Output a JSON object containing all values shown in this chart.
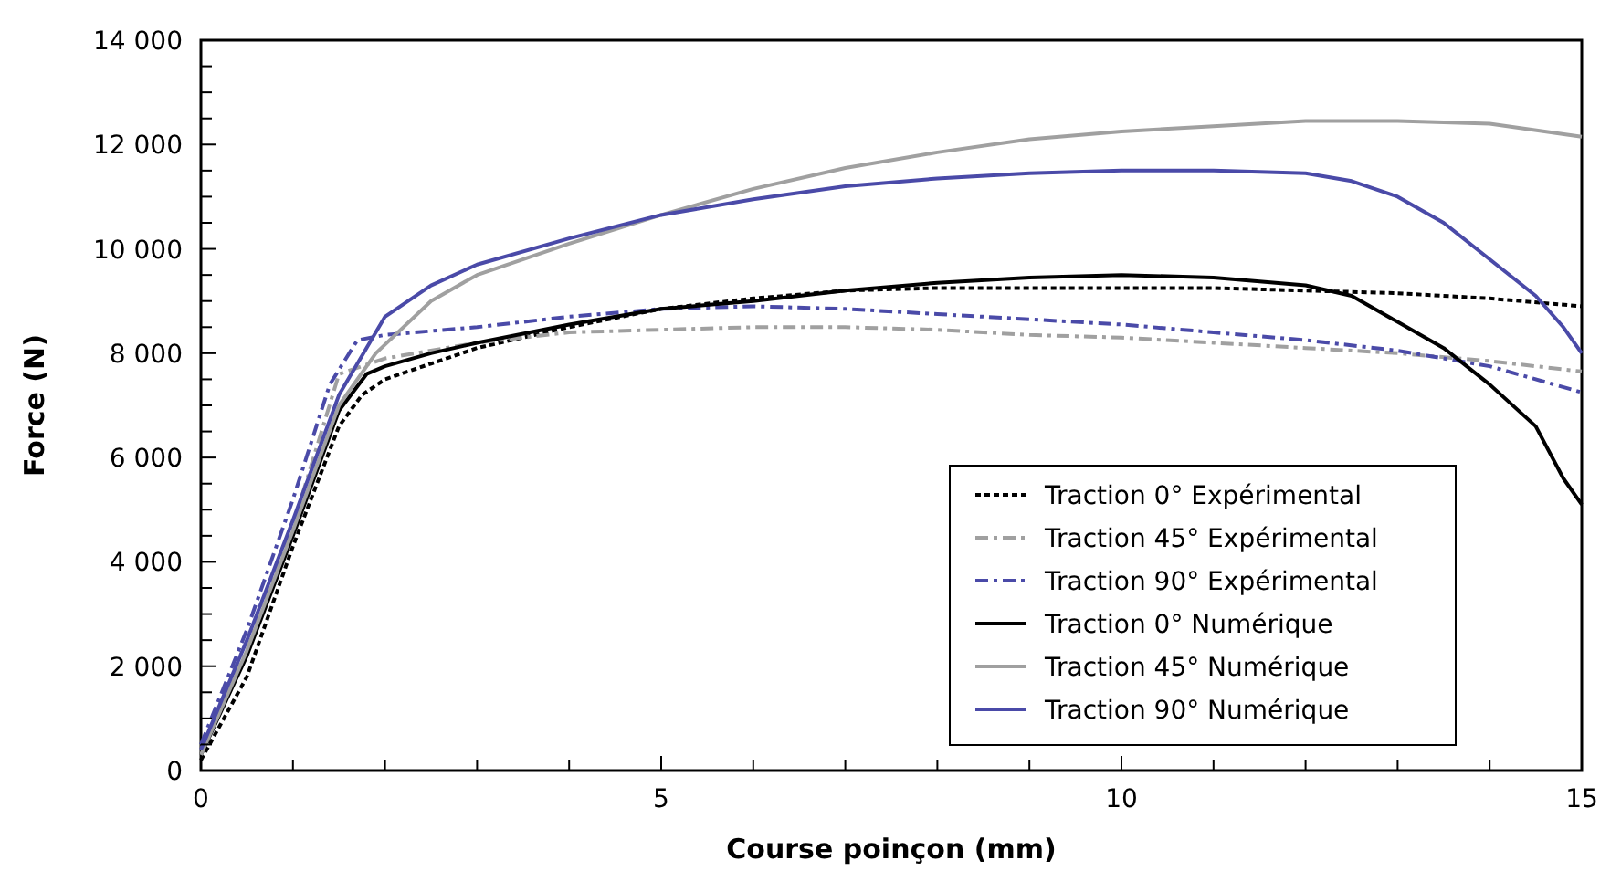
{
  "chart_data": {
    "type": "line",
    "xlabel": "Course poinçon (mm)",
    "ylabel": "Force (N)",
    "xlim": [
      0,
      15
    ],
    "ylim": [
      0,
      14000
    ],
    "xticks": [
      0,
      {
        "value": 1,
        "label": null
      },
      {
        "value": 2,
        "label": null
      },
      {
        "value": 3,
        "label": null
      },
      {
        "value": 4,
        "label": null
      },
      5,
      {
        "value": 6,
        "label": null
      },
      {
        "value": 7,
        "label": null
      },
      {
        "value": 8,
        "label": null
      },
      {
        "value": 9,
        "label": null
      },
      10,
      {
        "value": 11,
        "label": null
      },
      {
        "value": 12,
        "label": null
      },
      {
        "value": 13,
        "label": null
      },
      {
        "value": 14,
        "label": null
      },
      15
    ],
    "yticks": [
      0,
      {
        "value": 500,
        "label": null
      },
      {
        "value": 1000,
        "label": null
      },
      {
        "value": 1500,
        "label": null
      },
      {
        "value": 2000,
        "label": "2 000"
      },
      {
        "value": 2500,
        "label": null
      },
      {
        "value": 3000,
        "label": null
      },
      {
        "value": 3500,
        "label": null
      },
      {
        "value": 4000,
        "label": "4 000"
      },
      {
        "value": 4500,
        "label": null
      },
      {
        "value": 5000,
        "label": null
      },
      {
        "value": 5500,
        "label": null
      },
      {
        "value": 6000,
        "label": "6 000"
      },
      {
        "value": 6500,
        "label": null
      },
      {
        "value": 7000,
        "label": null
      },
      {
        "value": 7500,
        "label": null
      },
      {
        "value": 8000,
        "label": "8 000"
      },
      {
        "value": 8500,
        "label": null
      },
      {
        "value": 9000,
        "label": null
      },
      {
        "value": 9500,
        "label": null
      },
      {
        "value": 10000,
        "label": "10 000"
      },
      {
        "value": 10500,
        "label": null
      },
      {
        "value": 11000,
        "label": null
      },
      {
        "value": 11500,
        "label": null
      },
      {
        "value": 12000,
        "label": "12 000"
      },
      {
        "value": 12500,
        "label": null
      },
      {
        "value": 13000,
        "label": null
      },
      {
        "value": 13500,
        "label": null
      },
      {
        "value": 14000,
        "label": "14 000"
      }
    ],
    "grid": false,
    "legend": "bottom right",
    "marker": "none",
    "series": [
      {
        "name": "Traction 0° Expérimental",
        "color": "#000000",
        "line_style": "dotted",
        "x": [
          0,
          0.5,
          1,
          1.5,
          1.75,
          2,
          2.5,
          3,
          4,
          5,
          6,
          7,
          8,
          9,
          10,
          11,
          12,
          13,
          14,
          15
        ],
        "values": [
          200,
          1800,
          4300,
          6600,
          7200,
          7500,
          7800,
          8100,
          8500,
          8850,
          9050,
          9200,
          9250,
          9250,
          9250,
          9250,
          9200,
          9150,
          9050,
          8900
        ]
      },
      {
        "name": "Traction 45° Expérimental",
        "color": "#a0a0a0",
        "line_style": "dashed",
        "x": [
          0,
          0.5,
          1,
          1.5,
          2,
          3,
          4,
          5,
          6,
          7,
          8,
          9,
          10,
          11,
          12,
          13,
          14,
          15
        ],
        "values": [
          400,
          2300,
          4700,
          7600,
          7900,
          8200,
          8400,
          8450,
          8500,
          8500,
          8450,
          8350,
          8300,
          8200,
          8100,
          8000,
          7850,
          7650
        ]
      },
      {
        "name": "Traction 90° Expérimental",
        "color": "#4a4aa8",
        "line_style": "dashed",
        "x": [
          0,
          0.5,
          1,
          1.4,
          1.7,
          2,
          3,
          4,
          5,
          6,
          7,
          8,
          9,
          10,
          11,
          12,
          13,
          14,
          15
        ],
        "values": [
          500,
          2700,
          5200,
          7400,
          8250,
          8350,
          8500,
          8700,
          8850,
          8900,
          8850,
          8750,
          8650,
          8550,
          8400,
          8250,
          8050,
          7750,
          7250
        ]
      },
      {
        "name": "Traction 0° Numérique",
        "color": "#000000",
        "line_style": "solid",
        "x": [
          0,
          0.5,
          1,
          1.5,
          1.8,
          2,
          2.5,
          3,
          4,
          5,
          6,
          7,
          8,
          9,
          10,
          11,
          12,
          12.5,
          13,
          13.5,
          14,
          14.5,
          14.8,
          15
        ],
        "values": [
          300,
          2200,
          4500,
          6900,
          7600,
          7750,
          8000,
          8200,
          8550,
          8850,
          9000,
          9200,
          9350,
          9450,
          9500,
          9450,
          9300,
          9100,
          8600,
          8100,
          7400,
          6600,
          5600,
          5100
        ]
      },
      {
        "name": "Traction 45° Numérique",
        "color": "#a0a0a0",
        "line_style": "solid",
        "x": [
          0,
          0.5,
          1,
          1.5,
          1.9,
          2.5,
          3,
          4,
          5,
          6,
          7,
          8,
          9,
          10,
          11,
          12,
          13,
          14,
          15
        ],
        "values": [
          300,
          2300,
          4600,
          7000,
          8000,
          9000,
          9500,
          10100,
          10650,
          11150,
          11550,
          11850,
          12100,
          12250,
          12350,
          12450,
          12450,
          12400,
          12150
        ]
      },
      {
        "name": "Traction 90° Numérique",
        "color": "#4a4aa8",
        "line_style": "solid",
        "x": [
          0,
          0.5,
          1,
          1.5,
          2,
          2.5,
          3,
          4,
          5,
          6,
          7,
          8,
          9,
          10,
          11,
          12,
          12.5,
          13,
          13.5,
          14,
          14.5,
          14.8,
          15
        ],
        "values": [
          400,
          2500,
          4800,
          7200,
          8700,
          9300,
          9700,
          10200,
          10650,
          10950,
          11200,
          11350,
          11450,
          11500,
          11500,
          11450,
          11300,
          11000,
          10500,
          9800,
          9100,
          8500,
          8000
        ]
      }
    ]
  }
}
